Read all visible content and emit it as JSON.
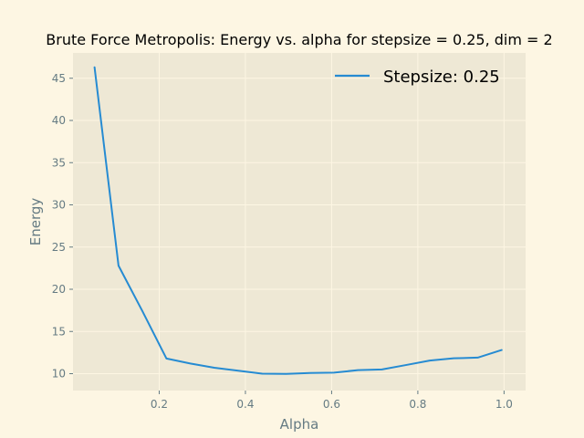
{
  "colors": {
    "figure_bg": "#fdf6e3",
    "axes_bg": "#eee8d5",
    "grid": "#fdf6e3",
    "line": "#268bd2",
    "tick_text": "#657b83",
    "title_text": "#000000"
  },
  "chart_data": {
    "type": "line",
    "title": "Brute Force Metropolis: Energy vs. alpha for stepsize = 0.25, dim = 2",
    "xlabel": "Alpha",
    "ylabel": "Energy",
    "xlim": [
      0.0,
      1.05
    ],
    "ylim": [
      8.0,
      48.0
    ],
    "grid": true,
    "legend_position": "top-right",
    "xticks": [
      0.2,
      0.4,
      0.6,
      0.8,
      1.0
    ],
    "xtick_labels": [
      "0.2",
      "0.4",
      "0.6",
      "0.8",
      "1.0"
    ],
    "yticks": [
      10,
      15,
      20,
      25,
      30,
      35,
      40,
      45
    ],
    "ytick_labels": [
      "10",
      "15",
      "20",
      "25",
      "30",
      "35",
      "40",
      "45"
    ],
    "series": [
      {
        "name": "Stepsize: 0.25",
        "x": [
          0.05,
          0.1056,
          0.1611,
          0.2167,
          0.2722,
          0.3278,
          0.3833,
          0.4389,
          0.4944,
          0.55,
          0.6056,
          0.6611,
          0.7167,
          0.7722,
          0.8278,
          0.8833,
          0.9389,
          0.9944
        ],
        "y": [
          46.3,
          22.8,
          17.4,
          11.8,
          11.2,
          10.7,
          10.35,
          10.0,
          9.98,
          10.08,
          10.12,
          10.42,
          10.5,
          11.02,
          11.55,
          11.82,
          11.9,
          12.8
        ]
      }
    ]
  }
}
